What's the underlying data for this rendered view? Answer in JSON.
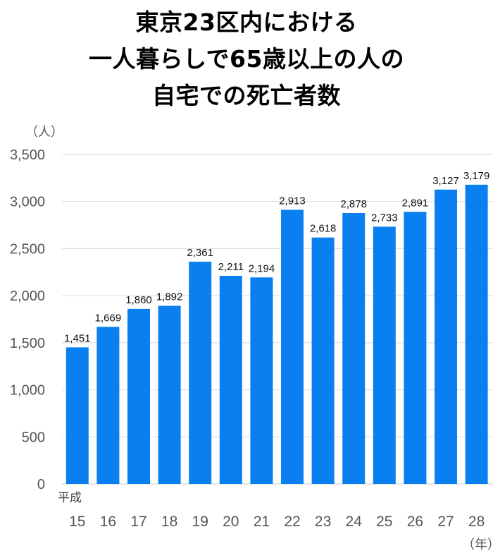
{
  "title_lines": [
    "東京23区内における",
    "一人暮らしで65歳以上の人の",
    "自宅での死亡者数"
  ],
  "chart_data": {
    "type": "bar",
    "title": "東京23区内における一人暮らしで65歳以上の人の自宅での死亡者数",
    "y_unit_label": "（人）",
    "x_unit_label": "（年）",
    "x_era_label": "平成",
    "categories": [
      "15",
      "16",
      "17",
      "18",
      "19",
      "20",
      "21",
      "22",
      "23",
      "24",
      "25",
      "26",
      "27",
      "28"
    ],
    "values": [
      1451,
      1669,
      1860,
      1892,
      2361,
      2211,
      2194,
      2913,
      2618,
      2878,
      2733,
      2891,
      3127,
      3179
    ],
    "value_labels": [
      "1,451",
      "1,669",
      "1,860",
      "1,892",
      "2,361",
      "2,211",
      "2,194",
      "2,913",
      "2,618",
      "2,878",
      "2,733",
      "2,891",
      "3,127",
      "3,179"
    ],
    "ylim": [
      0,
      3500
    ],
    "yticks": [
      0,
      500,
      1000,
      1500,
      2000,
      2500,
      3000,
      3500
    ],
    "ytick_labels": [
      "0",
      "500",
      "1,000",
      "1,500",
      "2,000",
      "2,500",
      "3,000",
      "3,500"
    ],
    "grid": true,
    "bar_color": "#0a80f0",
    "grid_color": "#d9d9d9"
  }
}
